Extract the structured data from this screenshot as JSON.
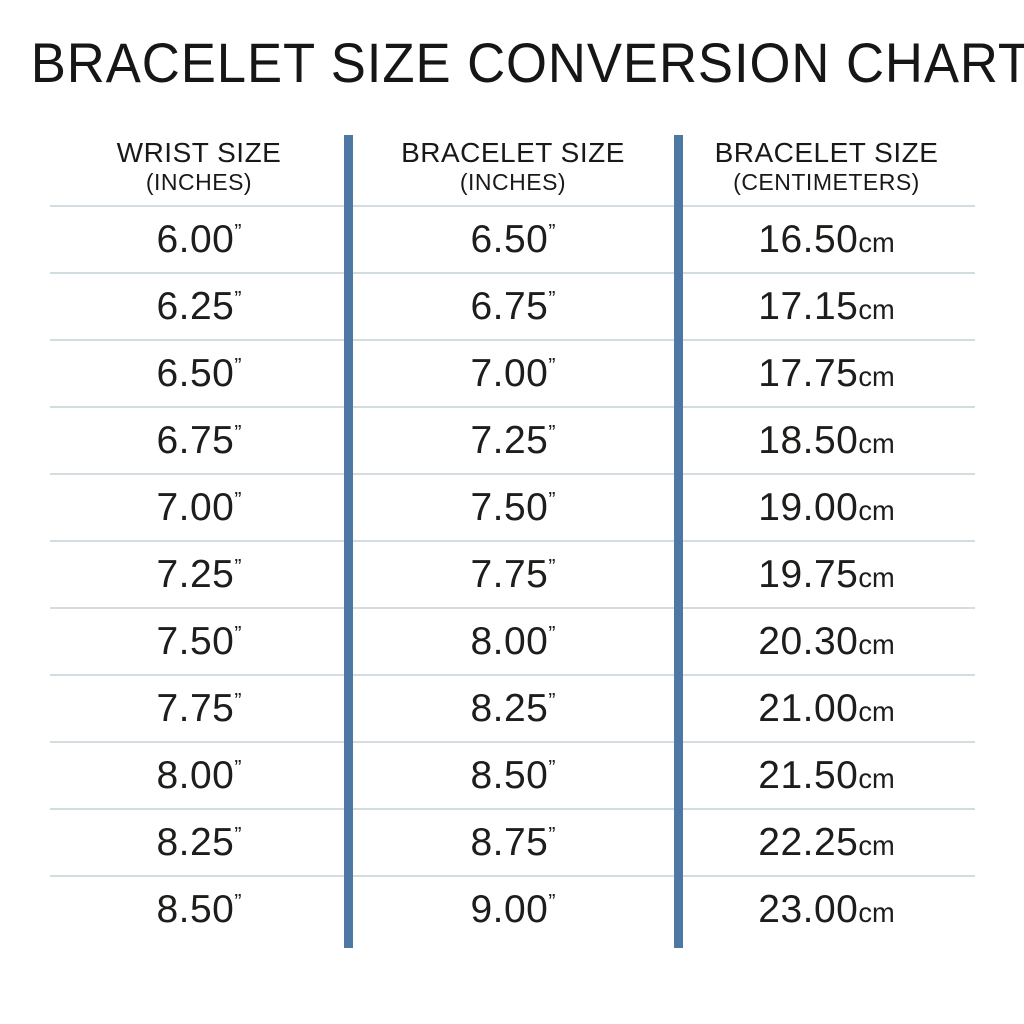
{
  "page": {
    "title": "BRACELET SIZE CONVERSION CHART"
  },
  "colors": {
    "background": "#ffffff",
    "text": "#1d1d1b",
    "column_divider_blue": "#4d78a3",
    "row_separator": "#d3dce1"
  },
  "table": {
    "headers": [
      {
        "label": "WRIST SIZE",
        "sublabel": "(INCHES)"
      },
      {
        "label": "BRACELET SIZE",
        "sublabel": "(INCHES)"
      },
      {
        "label": "BRACELET SIZE",
        "sublabel": "(CENTIMETERS)"
      }
    ],
    "units": {
      "inches": "”",
      "centimeters": "cm"
    },
    "rows": [
      {
        "wrist_in": "6.00",
        "bracelet_in": "6.50",
        "bracelet_cm": "16.50"
      },
      {
        "wrist_in": "6.25",
        "bracelet_in": "6.75",
        "bracelet_cm": "17.15"
      },
      {
        "wrist_in": "6.50",
        "bracelet_in": "7.00",
        "bracelet_cm": "17.75"
      },
      {
        "wrist_in": "6.75",
        "bracelet_in": "7.25",
        "bracelet_cm": "18.50"
      },
      {
        "wrist_in": "7.00",
        "bracelet_in": "7.50",
        "bracelet_cm": "19.00"
      },
      {
        "wrist_in": "7.25",
        "bracelet_in": "7.75",
        "bracelet_cm": "19.75"
      },
      {
        "wrist_in": "7.50",
        "bracelet_in": "8.00",
        "bracelet_cm": "20.30"
      },
      {
        "wrist_in": "7.75",
        "bracelet_in": "8.25",
        "bracelet_cm": "21.00"
      },
      {
        "wrist_in": "8.00",
        "bracelet_in": "8.50",
        "bracelet_cm": "21.50"
      },
      {
        "wrist_in": "8.25",
        "bracelet_in": "8.75",
        "bracelet_cm": "22.25"
      },
      {
        "wrist_in": "8.50",
        "bracelet_in": "9.00",
        "bracelet_cm": "23.00"
      }
    ]
  },
  "chart_data": {
    "type": "table",
    "title": "BRACELET SIZE CONVERSION CHART",
    "columns": [
      "WRIST SIZE (INCHES)",
      "BRACELET SIZE (INCHES)",
      "BRACELET SIZE (CENTIMETERS)"
    ],
    "rows": [
      [
        6.0,
        6.5,
        16.5
      ],
      [
        6.25,
        6.75,
        17.15
      ],
      [
        6.5,
        7.0,
        17.75
      ],
      [
        6.75,
        7.25,
        18.5
      ],
      [
        7.0,
        7.5,
        19.0
      ],
      [
        7.25,
        7.75,
        19.75
      ],
      [
        7.5,
        8.0,
        20.3
      ],
      [
        7.75,
        8.25,
        21.0
      ],
      [
        8.0,
        8.5,
        21.5
      ],
      [
        8.25,
        8.75,
        22.25
      ],
      [
        8.5,
        9.0,
        23.0
      ]
    ]
  }
}
